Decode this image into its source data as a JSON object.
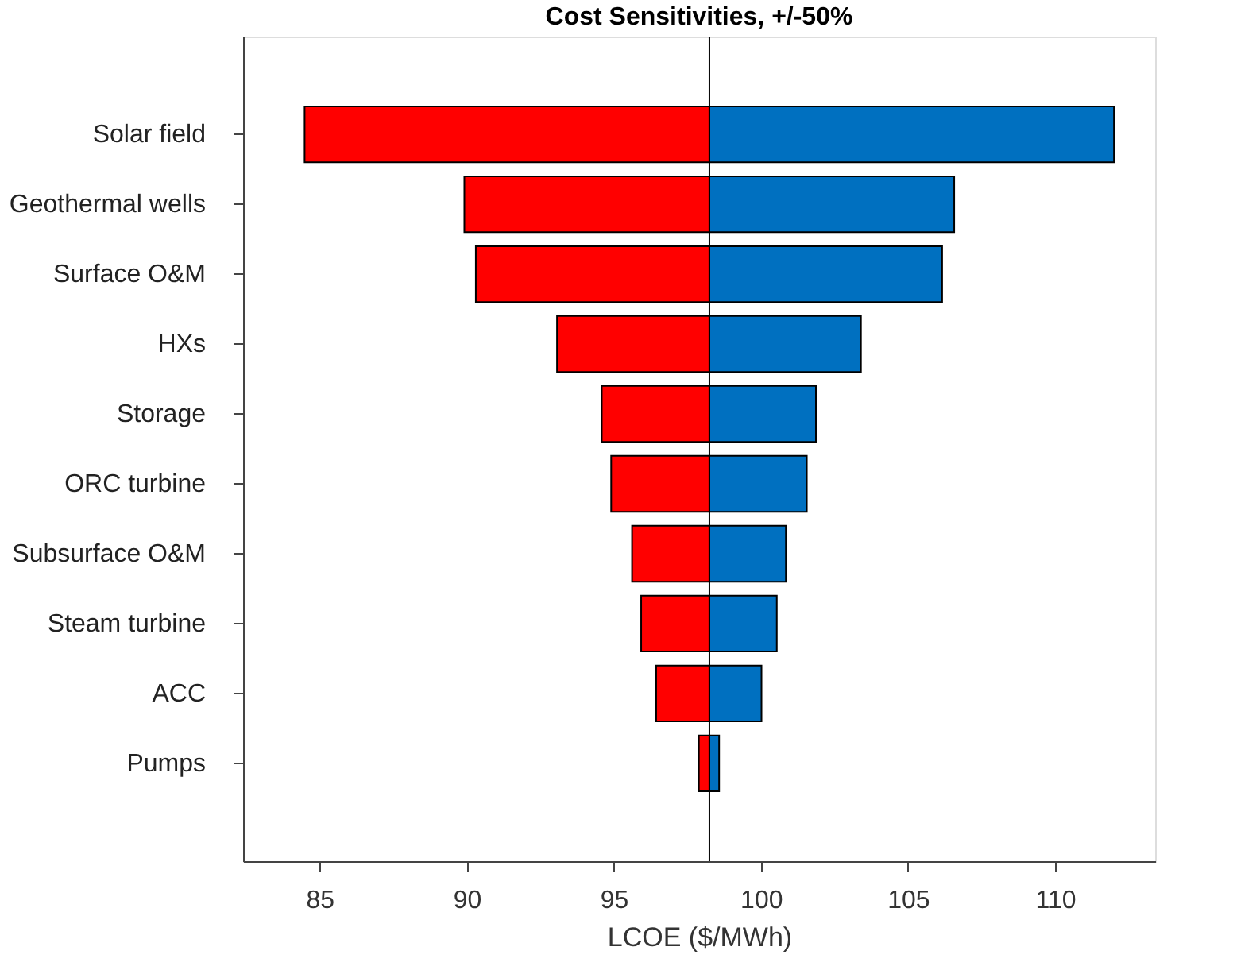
{
  "chart_data": {
    "type": "bar",
    "orientation": "horizontal",
    "title": "Cost Sensitivities, +/-50%",
    "xlabel": "LCOE ($/MWh)",
    "categories": [
      "Solar field",
      "Geothermal wells",
      "Surface O&M",
      "HXs",
      "Storage",
      "ORC turbine",
      "Subsurface O&M",
      "Steam turbine",
      "ACC",
      "Pumps"
    ],
    "series": [
      {
        "color": "#ff0000",
        "base": [
          84.49,
          89.92,
          90.31,
          93.07,
          94.59,
          94.91,
          95.62,
          95.93,
          96.44,
          97.89
        ],
        "values": [
          13.76,
          8.33,
          7.94,
          5.18,
          3.66,
          3.34,
          2.63,
          2.32,
          1.81,
          0.36
        ]
      },
      {
        "color": "#0070c0",
        "base": [
          98.25,
          98.25,
          98.25,
          98.25,
          98.25,
          98.25,
          98.25,
          98.25,
          98.25,
          98.25
        ],
        "values": [
          13.75,
          8.32,
          7.91,
          5.15,
          3.62,
          3.31,
          2.6,
          2.29,
          1.77,
          0.33
        ]
      }
    ],
    "ref_lines": [
      {
        "axis": "x",
        "value": 98.25,
        "color": "#000000"
      }
    ],
    "xlim": [
      82.4,
      113.4
    ],
    "xticks": [
      85,
      90,
      95,
      100,
      105,
      110
    ],
    "grid": false
  }
}
